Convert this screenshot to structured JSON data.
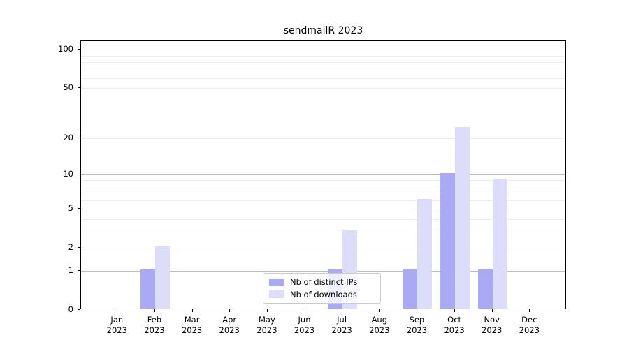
{
  "chart_data": {
    "type": "bar",
    "title": "sendmailR 2023",
    "categories": [
      "Jan 2023",
      "Feb 2023",
      "Mar 2023",
      "Apr 2023",
      "May 2023",
      "Jun 2023",
      "Jul 2023",
      "Aug 2023",
      "Sep 2023",
      "Oct 2023",
      "Nov 2023",
      "Dec 2023"
    ],
    "x_tick_months": [
      "Jan",
      "Feb",
      "Mar",
      "Apr",
      "May",
      "Jun",
      "Jul",
      "Aug",
      "Sep",
      "Oct",
      "Nov",
      "Dec"
    ],
    "x_tick_year": "2023",
    "series": [
      {
        "name": "Nb of distinct IPs",
        "color": "#a9a9f6",
        "values": [
          0,
          1,
          0,
          0,
          0,
          0,
          1,
          0,
          1,
          10,
          1,
          0
        ]
      },
      {
        "name": "Nb of downloads",
        "color": "#dcddfa",
        "values": [
          0,
          2,
          0,
          0,
          0,
          0,
          3,
          0,
          6,
          24,
          9,
          0
        ]
      }
    ],
    "xlabel": "",
    "ylabel": "",
    "y_scale": "log1p",
    "ylim": [
      0,
      116
    ],
    "y_ticks": [
      0,
      1,
      2,
      5,
      10,
      20,
      50,
      100
    ],
    "y_major_gridlines": [
      1,
      10,
      100
    ],
    "y_minor_gridlines": [
      2,
      3,
      4,
      5,
      6,
      7,
      8,
      9,
      20,
      30,
      40,
      50,
      60,
      70,
      80,
      90
    ],
    "grid": true,
    "legend_position": "lower center",
    "colors": {
      "major_grid": "#bdbdbd",
      "minor_grid": "#ececec",
      "spine": "#000000",
      "background": "#ffffff"
    }
  }
}
